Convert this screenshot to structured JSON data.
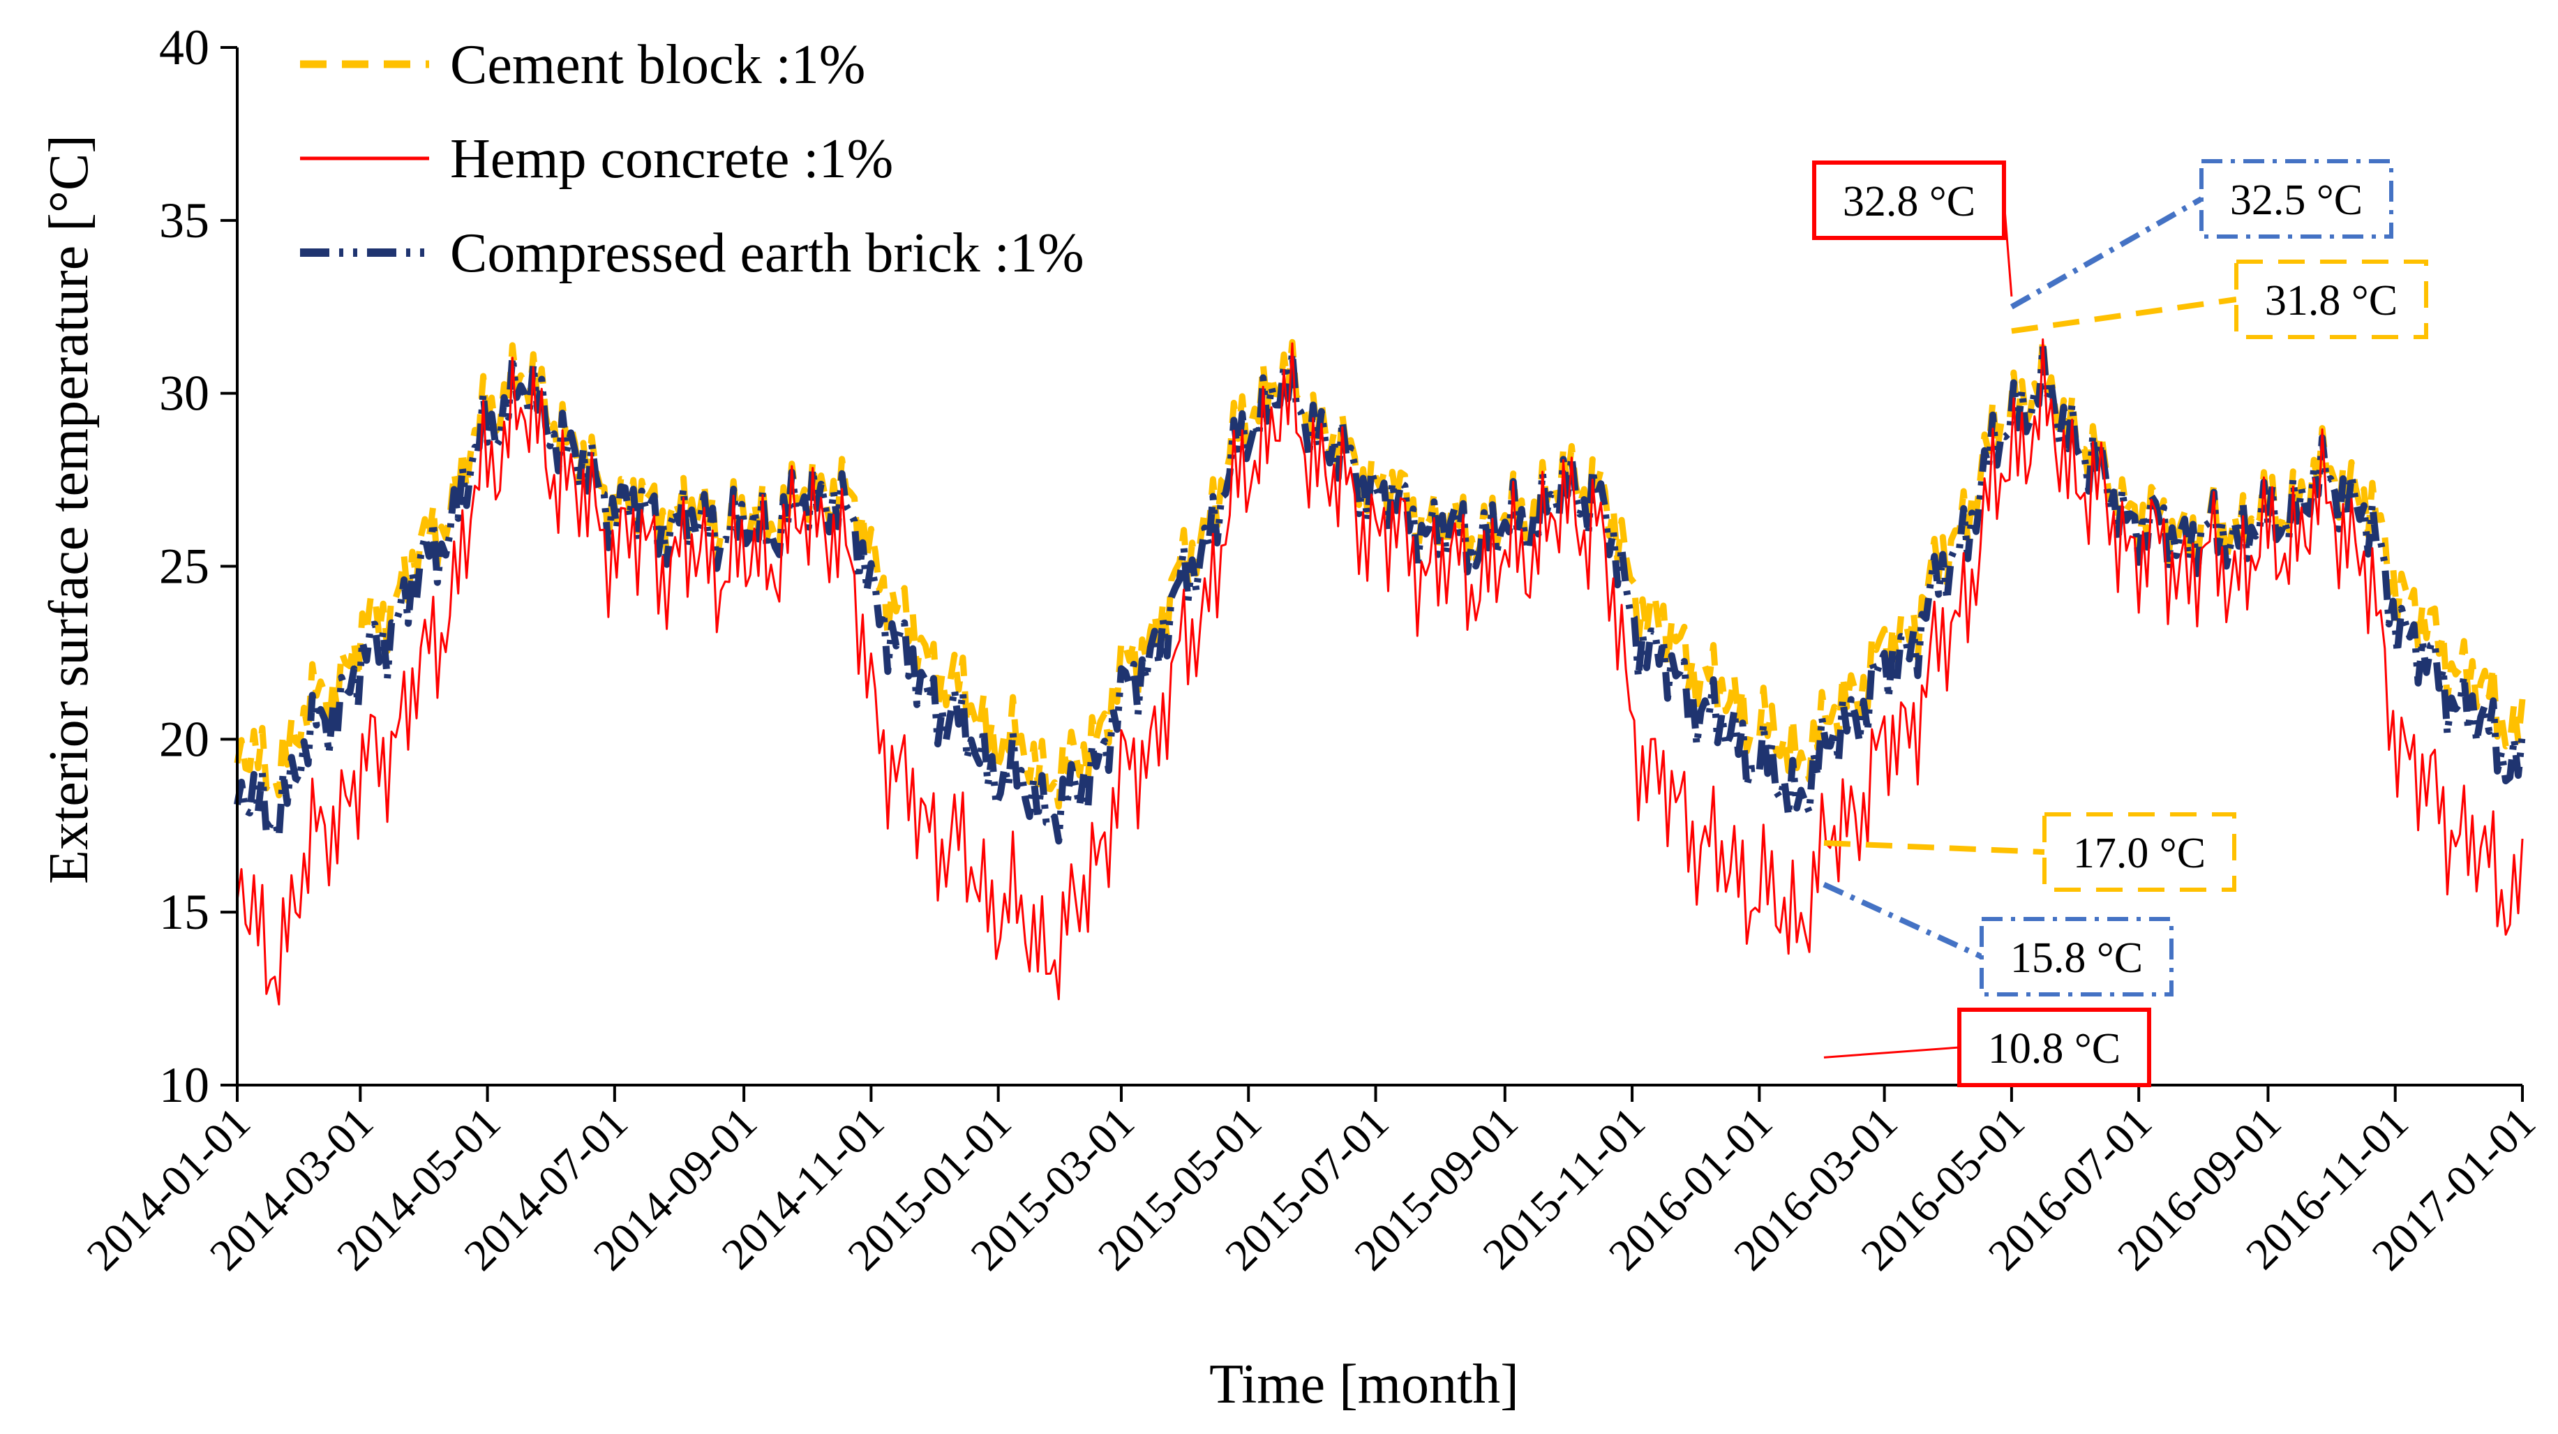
{
  "chart_data": {
    "type": "line",
    "xlabel": "Time [month]",
    "ylabel": "Exterior surface temperature [°C]",
    "ylim": [
      10,
      40
    ],
    "yticks": [
      10,
      15,
      20,
      25,
      30,
      35,
      40
    ],
    "xlim": [
      "2014-01-01",
      "2017-01-01"
    ],
    "xticks": [
      "2014-01-01",
      "2014-03-01",
      "2014-05-01",
      "2014-07-01",
      "2014-09-01",
      "2014-11-01",
      "2015-01-01",
      "2015-03-01",
      "2015-05-01",
      "2015-07-01",
      "2015-09-01",
      "2015-11-01",
      "2016-01-01",
      "2016-03-01",
      "2016-05-01",
      "2016-07-01",
      "2016-09-01",
      "2016-11-01",
      "2017-01-01"
    ],
    "grid": false,
    "legend": "top-left",
    "series": [
      {
        "name": "Cement block :1%",
        "color": "#ffc000",
        "style": "dashed",
        "values": [
          [
            "2014-01-01",
            20.0
          ],
          [
            "2014-01-15",
            18.8
          ],
          [
            "2014-02-01",
            20.5
          ],
          [
            "2014-02-15",
            21.5
          ],
          [
            "2014-03-01",
            22.8
          ],
          [
            "2014-03-15",
            24.0
          ],
          [
            "2014-04-01",
            25.5
          ],
          [
            "2014-04-15",
            27.0
          ],
          [
            "2014-05-01",
            29.5
          ],
          [
            "2014-05-15",
            30.5
          ],
          [
            "2014-06-01",
            29.5
          ],
          [
            "2014-06-15",
            28.0
          ],
          [
            "2014-07-01",
            27.0
          ],
          [
            "2014-07-15",
            26.8
          ],
          [
            "2014-08-01",
            26.5
          ],
          [
            "2014-08-15",
            26.5
          ],
          [
            "2014-09-01",
            26.2
          ],
          [
            "2014-09-15",
            26.5
          ],
          [
            "2014-10-01",
            27.0
          ],
          [
            "2014-10-15",
            27.5
          ],
          [
            "2014-11-01",
            25.5
          ],
          [
            "2014-11-15",
            23.5
          ],
          [
            "2014-12-01",
            22.2
          ],
          [
            "2014-12-15",
            21.2
          ],
          [
            "2015-01-01",
            20.0
          ],
          [
            "2015-01-15",
            19.5
          ],
          [
            "2015-02-01",
            18.8
          ],
          [
            "2015-02-15",
            20.0
          ],
          [
            "2015-03-01",
            21.8
          ],
          [
            "2015-03-15",
            23.0
          ],
          [
            "2015-04-01",
            25.0
          ],
          [
            "2015-04-15",
            27.0
          ],
          [
            "2015-05-01",
            29.5
          ],
          [
            "2015-05-15",
            30.5
          ],
          [
            "2015-06-01",
            29.5
          ],
          [
            "2015-06-15",
            28.2
          ],
          [
            "2015-07-01",
            27.5
          ],
          [
            "2015-07-15",
            26.8
          ],
          [
            "2015-08-01",
            26.2
          ],
          [
            "2015-08-15",
            26.0
          ],
          [
            "2015-09-01",
            26.2
          ],
          [
            "2015-09-15",
            26.8
          ],
          [
            "2015-10-01",
            27.5
          ],
          [
            "2015-10-15",
            27.5
          ],
          [
            "2015-11-01",
            24.5
          ],
          [
            "2015-11-15",
            23.2
          ],
          [
            "2015-12-01",
            22.2
          ],
          [
            "2015-12-15",
            21.2
          ],
          [
            "2016-01-01",
            20.5
          ],
          [
            "2016-01-15",
            19.5
          ],
          [
            "2016-02-01",
            20.2
          ],
          [
            "2016-02-15",
            21.5
          ],
          [
            "2016-03-01",
            22.5
          ],
          [
            "2016-03-15",
            23.5
          ],
          [
            "2016-04-01",
            25.5
          ],
          [
            "2016-04-15",
            27.5
          ],
          [
            "2016-05-01",
            29.8
          ],
          [
            "2016-05-15",
            30.2
          ],
          [
            "2016-06-01",
            29.0
          ],
          [
            "2016-06-15",
            27.5
          ],
          [
            "2016-07-01",
            26.5
          ],
          [
            "2016-07-15",
            26.2
          ],
          [
            "2016-08-01",
            26.0
          ],
          [
            "2016-08-15",
            26.2
          ],
          [
            "2016-09-01",
            26.5
          ],
          [
            "2016-09-15",
            27.0
          ],
          [
            "2016-10-01",
            27.8
          ],
          [
            "2016-10-15",
            27.2
          ],
          [
            "2016-11-01",
            24.8
          ],
          [
            "2016-11-15",
            23.2
          ],
          [
            "2016-12-01",
            22.2
          ],
          [
            "2016-12-15",
            21.2
          ],
          [
            "2017-01-01",
            20.2
          ]
        ]
      },
      {
        "name": "Hemp concrete :1%",
        "color": "#ff0000",
        "style": "solid",
        "values": [
          [
            "2014-01-01",
            16.5
          ],
          [
            "2014-01-15",
            13.0
          ],
          [
            "2014-02-01",
            16.0
          ],
          [
            "2014-02-15",
            17.8
          ],
          [
            "2014-03-01",
            18.8
          ],
          [
            "2014-03-15",
            20.0
          ],
          [
            "2014-04-01",
            22.0
          ],
          [
            "2014-04-15",
            24.5
          ],
          [
            "2014-05-01",
            28.0
          ],
          [
            "2014-05-15",
            29.5
          ],
          [
            "2014-06-01",
            28.2
          ],
          [
            "2014-06-15",
            26.8
          ],
          [
            "2014-07-01",
            25.8
          ],
          [
            "2014-07-15",
            25.5
          ],
          [
            "2014-08-01",
            25.2
          ],
          [
            "2014-08-15",
            25.2
          ],
          [
            "2014-09-01",
            25.0
          ],
          [
            "2014-09-15",
            25.5
          ],
          [
            "2014-10-01",
            26.2
          ],
          [
            "2014-10-15",
            26.5
          ],
          [
            "2014-11-01",
            21.5
          ],
          [
            "2014-11-15",
            18.5
          ],
          [
            "2014-12-01",
            17.5
          ],
          [
            "2014-12-15",
            16.5
          ],
          [
            "2015-01-01",
            15.2
          ],
          [
            "2015-01-15",
            14.5
          ],
          [
            "2015-02-01",
            13.8
          ],
          [
            "2015-02-15",
            16.5
          ],
          [
            "2015-03-01",
            18.5
          ],
          [
            "2015-03-15",
            20.0
          ],
          [
            "2015-04-01",
            22.5
          ],
          [
            "2015-04-15",
            25.0
          ],
          [
            "2015-05-01",
            28.0
          ],
          [
            "2015-05-15",
            29.5
          ],
          [
            "2015-06-01",
            28.5
          ],
          [
            "2015-06-15",
            27.0
          ],
          [
            "2015-07-01",
            26.2
          ],
          [
            "2015-07-15",
            25.5
          ],
          [
            "2015-08-01",
            25.0
          ],
          [
            "2015-08-15",
            24.8
          ],
          [
            "2015-09-01",
            25.0
          ],
          [
            "2015-09-15",
            25.8
          ],
          [
            "2015-10-01",
            26.5
          ],
          [
            "2015-10-15",
            26.5
          ],
          [
            "2015-11-01",
            20.5
          ],
          [
            "2015-11-15",
            18.5
          ],
          [
            "2015-12-01",
            17.5
          ],
          [
            "2015-12-15",
            16.2
          ],
          [
            "2016-01-01",
            15.8
          ],
          [
            "2016-01-15",
            14.5
          ],
          [
            "2016-02-01",
            16.5
          ],
          [
            "2016-02-15",
            18.0
          ],
          [
            "2016-03-01",
            19.5
          ],
          [
            "2016-03-15",
            20.8
          ],
          [
            "2016-04-01",
            23.0
          ],
          [
            "2016-04-15",
            25.5
          ],
          [
            "2016-05-01",
            28.5
          ],
          [
            "2016-05-15",
            29.2
          ],
          [
            "2016-06-01",
            27.8
          ],
          [
            "2016-06-15",
            26.5
          ],
          [
            "2016-07-01",
            25.5
          ],
          [
            "2016-07-15",
            25.2
          ],
          [
            "2016-08-01",
            25.0
          ],
          [
            "2016-08-15",
            25.0
          ],
          [
            "2016-09-01",
            25.5
          ],
          [
            "2016-09-15",
            26.0
          ],
          [
            "2016-10-01",
            26.8
          ],
          [
            "2016-10-15",
            25.5
          ],
          [
            "2016-11-01",
            20.5
          ],
          [
            "2016-11-15",
            18.5
          ],
          [
            "2016-12-01",
            17.5
          ],
          [
            "2016-12-15",
            16.2
          ],
          [
            "2017-01-01",
            15.5
          ]
        ]
      },
      {
        "name": "Compressed earth brick :1%",
        "color": "#1f3470",
        "style": "dash-dot-dot",
        "values": [
          [
            "2014-01-01",
            18.8
          ],
          [
            "2014-01-15",
            17.5
          ],
          [
            "2014-02-01",
            19.5
          ],
          [
            "2014-02-15",
            20.8
          ],
          [
            "2014-03-01",
            22.0
          ],
          [
            "2014-03-15",
            23.2
          ],
          [
            "2014-04-01",
            25.0
          ],
          [
            "2014-04-15",
            26.5
          ],
          [
            "2014-05-01",
            29.0
          ],
          [
            "2014-05-15",
            30.2
          ],
          [
            "2014-06-01",
            29.2
          ],
          [
            "2014-06-15",
            27.8
          ],
          [
            "2014-07-01",
            26.8
          ],
          [
            "2014-07-15",
            26.5
          ],
          [
            "2014-08-01",
            26.2
          ],
          [
            "2014-08-15",
            26.2
          ],
          [
            "2014-09-01",
            26.0
          ],
          [
            "2014-09-15",
            26.2
          ],
          [
            "2014-10-01",
            26.8
          ],
          [
            "2014-10-15",
            27.2
          ],
          [
            "2014-11-01",
            24.5
          ],
          [
            "2014-11-15",
            22.5
          ],
          [
            "2014-12-01",
            21.2
          ],
          [
            "2014-12-15",
            20.2
          ],
          [
            "2015-01-01",
            19.0
          ],
          [
            "2015-01-15",
            18.5
          ],
          [
            "2015-02-01",
            17.8
          ],
          [
            "2015-02-15",
            19.2
          ],
          [
            "2015-03-01",
            21.0
          ],
          [
            "2015-03-15",
            22.5
          ],
          [
            "2015-04-01",
            24.5
          ],
          [
            "2015-04-15",
            26.5
          ],
          [
            "2015-05-01",
            29.0
          ],
          [
            "2015-05-15",
            30.2
          ],
          [
            "2015-06-01",
            29.2
          ],
          [
            "2015-06-15",
            28.0
          ],
          [
            "2015-07-01",
            27.2
          ],
          [
            "2015-07-15",
            26.5
          ],
          [
            "2015-08-01",
            26.0
          ],
          [
            "2015-08-15",
            25.8
          ],
          [
            "2015-09-01",
            26.0
          ],
          [
            "2015-09-15",
            26.5
          ],
          [
            "2015-10-01",
            27.2
          ],
          [
            "2015-10-15",
            27.2
          ],
          [
            "2015-11-01",
            23.5
          ],
          [
            "2015-11-15",
            22.2
          ],
          [
            "2015-12-01",
            21.2
          ],
          [
            "2015-12-15",
            20.2
          ],
          [
            "2016-01-01",
            19.5
          ],
          [
            "2016-01-15",
            18.2
          ],
          [
            "2016-02-01",
            19.5
          ],
          [
            "2016-02-15",
            20.8
          ],
          [
            "2016-03-01",
            21.8
          ],
          [
            "2016-03-15",
            23.0
          ],
          [
            "2016-04-01",
            25.0
          ],
          [
            "2016-04-15",
            27.0
          ],
          [
            "2016-05-01",
            29.5
          ],
          [
            "2016-05-15",
            30.0
          ],
          [
            "2016-06-01",
            28.8
          ],
          [
            "2016-06-15",
            27.2
          ],
          [
            "2016-07-01",
            26.2
          ],
          [
            "2016-07-15",
            26.0
          ],
          [
            "2016-08-01",
            25.8
          ],
          [
            "2016-08-15",
            26.0
          ],
          [
            "2016-09-01",
            26.2
          ],
          [
            "2016-09-15",
            26.8
          ],
          [
            "2016-10-01",
            27.5
          ],
          [
            "2016-10-15",
            26.8
          ],
          [
            "2016-11-01",
            23.8
          ],
          [
            "2016-11-15",
            22.2
          ],
          [
            "2016-12-01",
            21.2
          ],
          [
            "2016-12-15",
            20.2
          ],
          [
            "2017-01-01",
            19.2
          ]
        ]
      }
    ],
    "annotations": [
      {
        "label": "32.8 °C",
        "series": "Hemp concrete :1%",
        "point": [
          "2016-05-01",
          32.8
        ],
        "box_color": "#ff0000",
        "box_style": "solid"
      },
      {
        "label": "32.5 °C",
        "series": "Compressed earth brick :1%",
        "point": [
          "2016-05-01",
          32.5
        ],
        "box_color": "#4472c4",
        "box_style": "dash-dot"
      },
      {
        "label": "31.8 °C",
        "series": "Cement block :1%",
        "point": [
          "2016-05-01",
          31.8
        ],
        "box_color": "#ffc000",
        "box_style": "dashed"
      },
      {
        "label": "17.0 °C",
        "series": "Cement block :1%",
        "point": [
          "2016-02-01",
          17.0
        ],
        "box_color": "#ffc000",
        "box_style": "dashed"
      },
      {
        "label": "15.8 °C",
        "series": "Compressed earth brick :1%",
        "point": [
          "2016-02-01",
          15.8
        ],
        "box_color": "#4472c4",
        "box_style": "dash-dot"
      },
      {
        "label": "10.8 °C",
        "series": "Hemp concrete :1%",
        "point": [
          "2016-02-01",
          10.8
        ],
        "box_color": "#ff0000",
        "box_style": "solid"
      }
    ]
  }
}
